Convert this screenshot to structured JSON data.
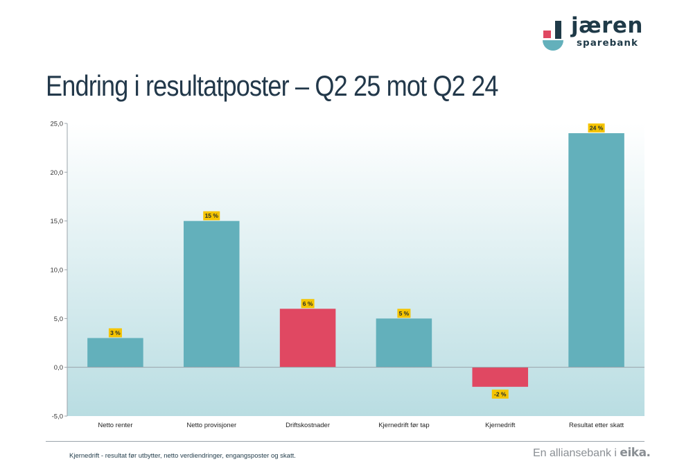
{
  "brand": {
    "name": "jæren",
    "sub": "sparebank"
  },
  "title": "Endring i resultatposter – Q2 25 mot Q2 24",
  "colors": {
    "positive": "#63b0bb",
    "negative": "#e04862",
    "label_bg": "#f5c400",
    "title": "#22384a"
  },
  "chart_data": {
    "type": "bar",
    "categories": [
      "Netto renter",
      "Netto provisjoner",
      "Driftskostnader",
      "Kjernedrift før tap",
      "Kjernedrift",
      "Resultat etter skatt"
    ],
    "values": [
      3,
      15,
      6,
      5,
      -2,
      24
    ],
    "data_labels": [
      "3 %",
      "15 %",
      "6 %",
      "5 %",
      "-2 %",
      "24 %"
    ],
    "bar_colors": [
      "positive",
      "positive",
      "negative",
      "positive",
      "negative",
      "positive"
    ],
    "ylim": [
      -5,
      25
    ],
    "yticks": [
      -5,
      0,
      5,
      10,
      15,
      20,
      25
    ],
    "ytick_labels": [
      "-5,0",
      "0,0",
      "5,0",
      "10,0",
      "15,0",
      "20,0",
      "25,0"
    ],
    "xlabel": "",
    "ylabel": "",
    "grid": false,
    "legend": "none"
  },
  "footnote": "Kjernedrift - resultat før utbytter, netto verdiendringer, engangsposter og skatt.",
  "tagline": {
    "text": "En alliansebank i",
    "brand": "eika."
  }
}
